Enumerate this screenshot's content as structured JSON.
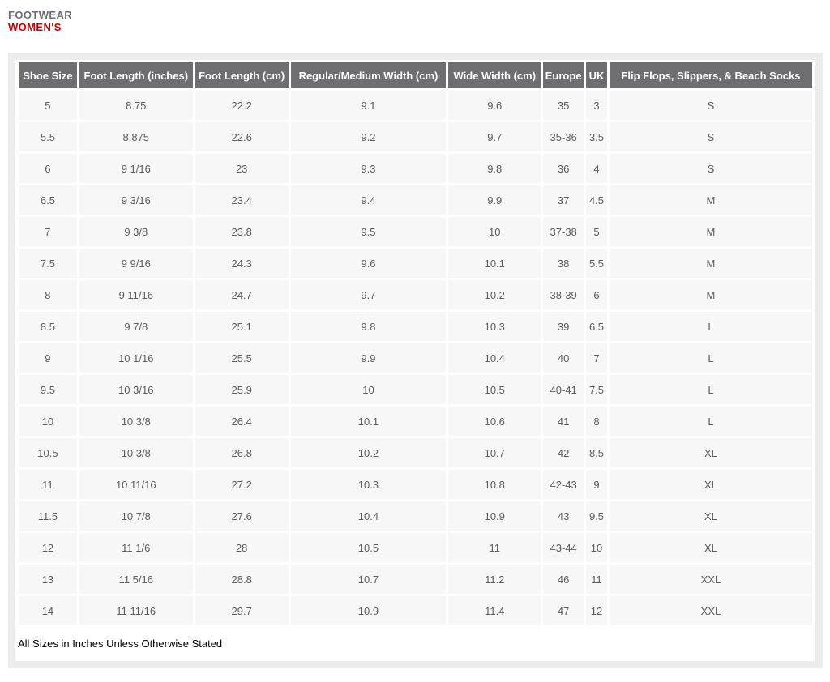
{
  "header": {
    "category": "FOOTWEAR",
    "title": "WOMEN'S"
  },
  "colors": {
    "accent_red": "#cc0000",
    "eyebrow_gray": "#6d6e71",
    "table_header_bg": "#6e6e70",
    "row_bg": "#f7f7f7",
    "cell_text": "#5a5b5d",
    "panel_border": "#ececec"
  },
  "table": {
    "columns": [
      "Shoe Size",
      "Foot Length (inches)",
      "Foot Length (cm)",
      "Regular/Medium Width (cm)",
      "Wide Width (cm)",
      "Europe",
      "UK",
      "Flip Flops, Slippers, & Beach Socks"
    ],
    "rows": [
      [
        "5",
        "8.75",
        "22.2",
        "9.1",
        "9.6",
        "35",
        "3",
        "S"
      ],
      [
        "5.5",
        "8.875",
        "22.6",
        "9.2",
        "9.7",
        "35-36",
        "3.5",
        "S"
      ],
      [
        "6",
        "9 1/16",
        "23",
        "9.3",
        "9.8",
        "36",
        "4",
        "S"
      ],
      [
        "6.5",
        "9 3/16",
        "23.4",
        "9.4",
        "9.9",
        "37",
        "4.5",
        "M"
      ],
      [
        "7",
        "9 3/8",
        "23.8",
        "9.5",
        "10",
        "37-38",
        "5",
        "M"
      ],
      [
        "7.5",
        "9 9/16",
        "24.3",
        "9.6",
        "10.1",
        "38",
        "5.5",
        "M"
      ],
      [
        "8",
        "9 11/16",
        "24.7",
        "9.7",
        "10.2",
        "38-39",
        "6",
        "M"
      ],
      [
        "8.5",
        "9 7/8",
        "25.1",
        "9.8",
        "10.3",
        "39",
        "6.5",
        "L"
      ],
      [
        "9",
        "10 1/16",
        "25.5",
        "9.9",
        "10.4",
        "40",
        "7",
        "L"
      ],
      [
        "9.5",
        "10 3/16",
        "25.9",
        "10",
        "10.5",
        "40-41",
        "7.5",
        "L"
      ],
      [
        "10",
        "10 3/8",
        "26.4",
        "10.1",
        "10.6",
        "41",
        "8",
        "L"
      ],
      [
        "10.5",
        "10 3/8",
        "26.8",
        "10.2",
        "10.7",
        "42",
        "8.5",
        "XL"
      ],
      [
        "11",
        "10 11/16",
        "27.2",
        "10.3",
        "10.8",
        "42-43",
        "9",
        "XL"
      ],
      [
        "11.5",
        "10 7/8",
        "27.6",
        "10.4",
        "10.9",
        "43",
        "9.5",
        "XL"
      ],
      [
        "12",
        "11 1/6",
        "28",
        "10.5",
        "11",
        "43-44",
        "10",
        "XL"
      ],
      [
        "13",
        "11 5/16",
        "28.8",
        "10.7",
        "11.2",
        "46",
        "11",
        "XXL"
      ],
      [
        "14",
        "11 11/16",
        "29.7",
        "10.9",
        "11.4",
        "47",
        "12",
        "XXL"
      ]
    ]
  },
  "footnote": "All Sizes in Inches Unless Otherwise Stated"
}
